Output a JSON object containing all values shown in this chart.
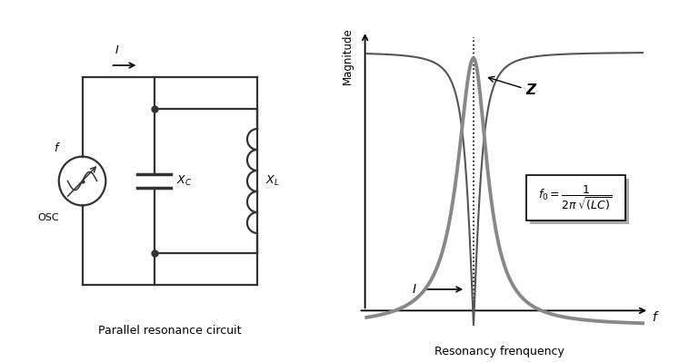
{
  "bg_color": "#ffffff",
  "left_panel_title": "Parallel resonance circuit",
  "right_panel_title": "Resonancy frenquency",
  "circuit_color": "#333333",
  "curve_z_color": "#888888",
  "curve_i_color": "#555555",
  "dashed_color": "#555555",
  "magnitude_label": "Magnitude",
  "f_label": "f",
  "z_label": "Z",
  "i_label": "I"
}
